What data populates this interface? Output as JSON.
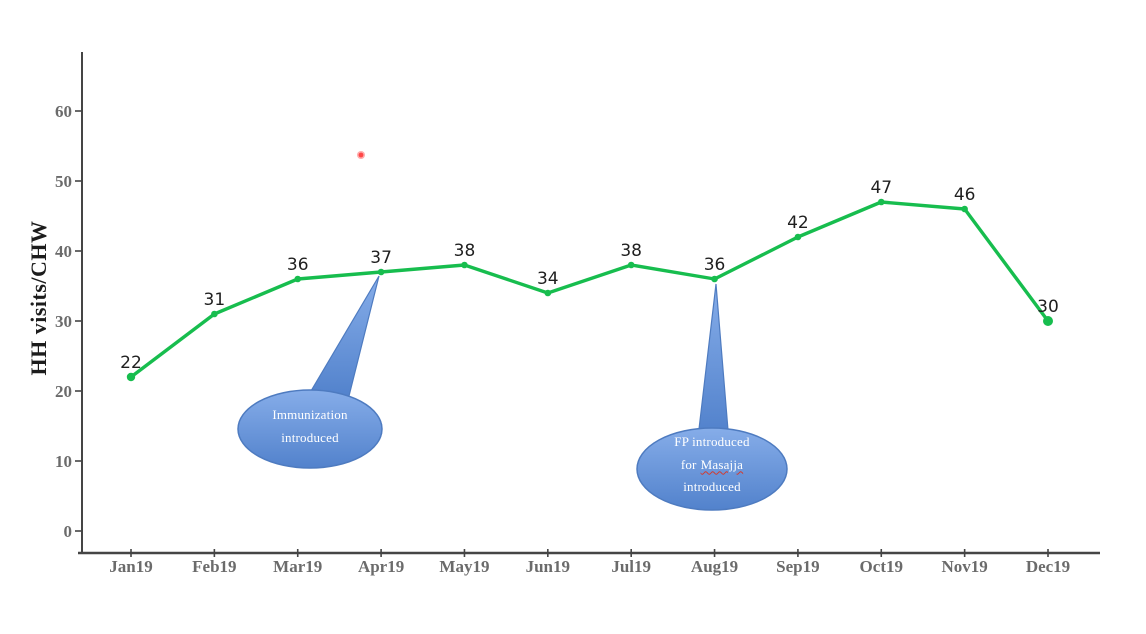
{
  "figure": {
    "background": "#ffffff"
  },
  "chart_data": {
    "type": "line",
    "title": "",
    "xlabel": "",
    "ylabel": "HH visits/CHW",
    "categories": [
      "Jan19",
      "Feb19",
      "Mar19",
      "Apr19",
      "May19",
      "Jun19",
      "Jul19",
      "Aug19",
      "Sep19",
      "Oct19",
      "Nov19",
      "Dec19"
    ],
    "values": [
      22,
      31,
      36,
      37,
      38,
      34,
      38,
      36,
      42,
      47,
      46,
      30
    ],
    "yticks": [
      0,
      10,
      20,
      30,
      40,
      50,
      60
    ],
    "ylim": [
      0,
      68
    ],
    "grid": false,
    "legend": "none",
    "data_labels": true,
    "line_color": "#17bd4e",
    "marker": "circle"
  },
  "axis": {
    "line_color": "#454545",
    "tick_label_color": "#6b6b6b",
    "data_label_color": "#1f1f1f",
    "title_color": "#1c1c1c"
  },
  "annotations": {
    "callout_style": {
      "fill_top": "#86ade9",
      "fill_bottom": "#5282cc",
      "border": "#4e7bc0",
      "text_color": "#ffffff"
    },
    "callout1": {
      "target_month": "Apr19",
      "lines": [
        "Immunization",
        "introduced"
      ]
    },
    "callout2": {
      "target_month": "Aug19",
      "line1": "FP introduced",
      "line2_prefix": "for",
      "line2_misspelled": "Masajja",
      "line3": "introduced"
    },
    "stray_dot": {
      "color": "#ff4747"
    }
  }
}
